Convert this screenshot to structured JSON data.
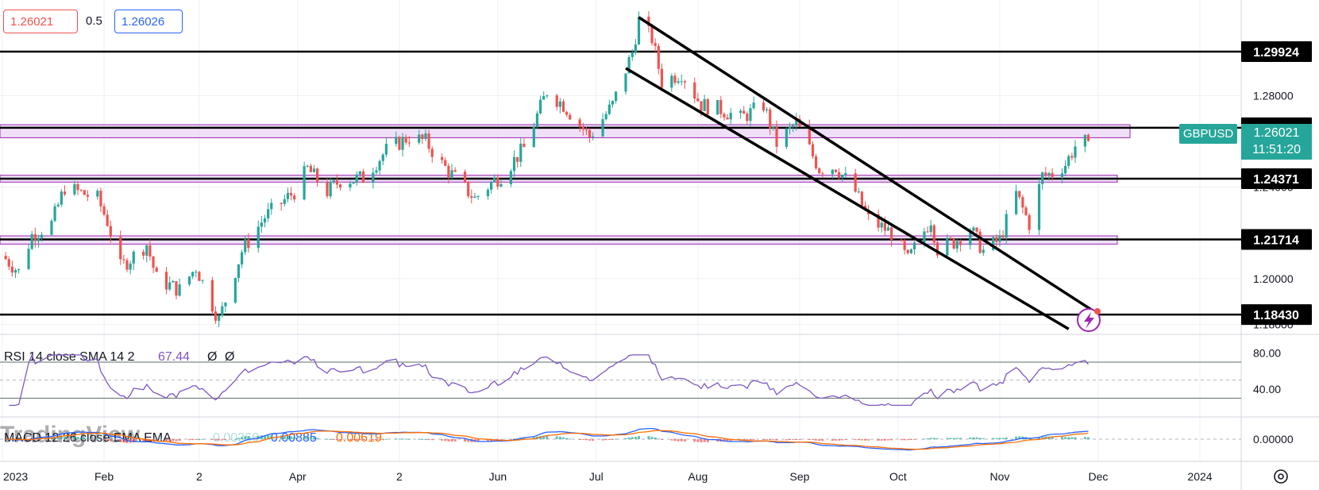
{
  "symbol": "GBPUSD",
  "top_bar": {
    "sell_price": "1.26021",
    "spread": "0.5",
    "buy_price": "1.26026"
  },
  "current": {
    "price": "1.26021",
    "countdown": "11:51:20",
    "price_value": 1.26021
  },
  "colors": {
    "up": "#26a69a",
    "down": "#ef5350",
    "zone_fill": "#e9d5f5",
    "zone_border": "#9c27b0",
    "rsi_line": "#7e57c2",
    "macd_line": "#2962ff",
    "signal_line": "#ff6d00",
    "current_tag": "#26a69a"
  },
  "price_axis": {
    "ticks": [
      "1.28000",
      "1.24000",
      "1.20000",
      "1.18000"
    ],
    "tick_values": [
      1.28,
      1.24,
      1.2,
      1.18
    ]
  },
  "horizontal_levels": [
    {
      "label": "1.29924",
      "value": 1.29924
    },
    {
      "label": "1.26596",
      "value": 1.26596
    },
    {
      "label": "1.24371",
      "value": 1.24371
    },
    {
      "label": "1.21714",
      "value": 1.21714
    },
    {
      "label": "1.18430",
      "value": 1.1843
    }
  ],
  "zones": [
    {
      "low": 1.2616,
      "high": 1.2673
    },
    {
      "low": 1.2422,
      "high": 1.2452
    },
    {
      "low": 1.2151,
      "high": 1.2187
    }
  ],
  "channel_lines": [
    {
      "from": {
        "date": "2023-07-14",
        "price": 1.3142
      },
      "to": {
        "date": "2023-12-01",
        "price": 1.1845
      }
    },
    {
      "from": {
        "date": "2023-07-10",
        "price": 1.292
      },
      "to": {
        "date": "2023-11-22",
        "price": 1.178
      }
    }
  ],
  "time_axis": {
    "labels": [
      "2023",
      "Feb",
      "2",
      "Apr",
      "2",
      "Jun",
      "Jul",
      "Aug",
      "Sep",
      "Oct",
      "Nov",
      "Dec",
      "2024"
    ],
    "dates": [
      "2023-01-01",
      "2023-02-01",
      "2023-03-02",
      "2023-04-01",
      "2023-05-02",
      "2023-06-01",
      "2023-07-01",
      "2023-08-01",
      "2023-09-01",
      "2023-10-01",
      "2023-11-01",
      "2023-12-01",
      "2024-01-01"
    ]
  },
  "rsi": {
    "label": "RSI 14 close SMA 14 2",
    "value": "67.44",
    "na1": "Ø",
    "na2": "Ø",
    "ticks": [
      "80.00",
      "40.00"
    ],
    "tick_values": [
      80,
      40
    ],
    "band": [
      30,
      70
    ],
    "mid": 50
  },
  "macd": {
    "label": "MACD 12 26 close EMA EMA",
    "hist": "0.00266",
    "macd": "0.00885",
    "signal": "0.00619",
    "ticks": [
      "0.00000"
    ],
    "tick_values": [
      0
    ]
  },
  "watermark": "TradingView",
  "chart_data": {
    "type": "candlestick",
    "symbol": "GBPUSD",
    "timeframe": "daily",
    "x_range": [
      "2023-01-01",
      "2024-01-10"
    ],
    "price_range": [
      1.172,
      1.318
    ],
    "anchors": [
      [
        "2023-01-01",
        1.21
      ],
      [
        "2023-01-06",
        1.203
      ],
      [
        "2023-01-10",
        1.219
      ],
      [
        "2023-01-16",
        1.224
      ],
      [
        "2023-01-20",
        1.24
      ],
      [
        "2023-01-24",
        1.238
      ],
      [
        "2023-01-30",
        1.235
      ],
      [
        "2023-02-02",
        1.225
      ],
      [
        "2023-02-06",
        1.205
      ],
      [
        "2023-02-14",
        1.215
      ],
      [
        "2023-02-17",
        1.2
      ],
      [
        "2023-02-24",
        1.195
      ],
      [
        "2023-03-01",
        1.205
      ],
      [
        "2023-03-08",
        1.182
      ],
      [
        "2023-03-15",
        1.212
      ],
      [
        "2023-03-22",
        1.227
      ],
      [
        "2023-03-31",
        1.238
      ],
      [
        "2023-04-04",
        1.248
      ],
      [
        "2023-04-10",
        1.238
      ],
      [
        "2023-04-14",
        1.243
      ],
      [
        "2023-04-21",
        1.244
      ],
      [
        "2023-04-28",
        1.256
      ],
      [
        "2023-05-05",
        1.262
      ],
      [
        "2023-05-10",
        1.26
      ],
      [
        "2023-05-15",
        1.25
      ],
      [
        "2023-05-19",
        1.244
      ],
      [
        "2023-05-25",
        1.235
      ],
      [
        "2023-05-31",
        1.243
      ],
      [
        "2023-06-02",
        1.245
      ],
      [
        "2023-06-09",
        1.257
      ],
      [
        "2023-06-16",
        1.282
      ],
      [
        "2023-06-21",
        1.276
      ],
      [
        "2023-06-29",
        1.262
      ],
      [
        "2023-07-06",
        1.276
      ],
      [
        "2023-07-12",
        1.299
      ],
      [
        "2023-07-14",
        1.313
      ],
      [
        "2023-07-18",
        1.305
      ],
      [
        "2023-07-21",
        1.286
      ],
      [
        "2023-07-27",
        1.29
      ],
      [
        "2023-08-02",
        1.276
      ],
      [
        "2023-08-08",
        1.274
      ],
      [
        "2023-08-14",
        1.27
      ],
      [
        "2023-08-21",
        1.276
      ],
      [
        "2023-08-25",
        1.259
      ],
      [
        "2023-08-31",
        1.268
      ],
      [
        "2023-09-07",
        1.248
      ],
      [
        "2023-09-12",
        1.249
      ],
      [
        "2023-09-18",
        1.238
      ],
      [
        "2023-09-22",
        1.226
      ],
      [
        "2023-09-29",
        1.22
      ],
      [
        "2023-10-04",
        1.208
      ],
      [
        "2023-10-11",
        1.226
      ],
      [
        "2023-10-13",
        1.213
      ],
      [
        "2023-10-18",
        1.216
      ],
      [
        "2023-10-23",
        1.222
      ],
      [
        "2023-10-27",
        1.212
      ],
      [
        "2023-11-01",
        1.217
      ],
      [
        "2023-11-06",
        1.237
      ],
      [
        "2023-11-10",
        1.224
      ],
      [
        "2023-11-14",
        1.245
      ],
      [
        "2023-11-17",
        1.246
      ],
      [
        "2023-11-21",
        1.25
      ],
      [
        "2023-11-24",
        1.258
      ],
      [
        "2023-11-28",
        1.2602
      ]
    ]
  }
}
